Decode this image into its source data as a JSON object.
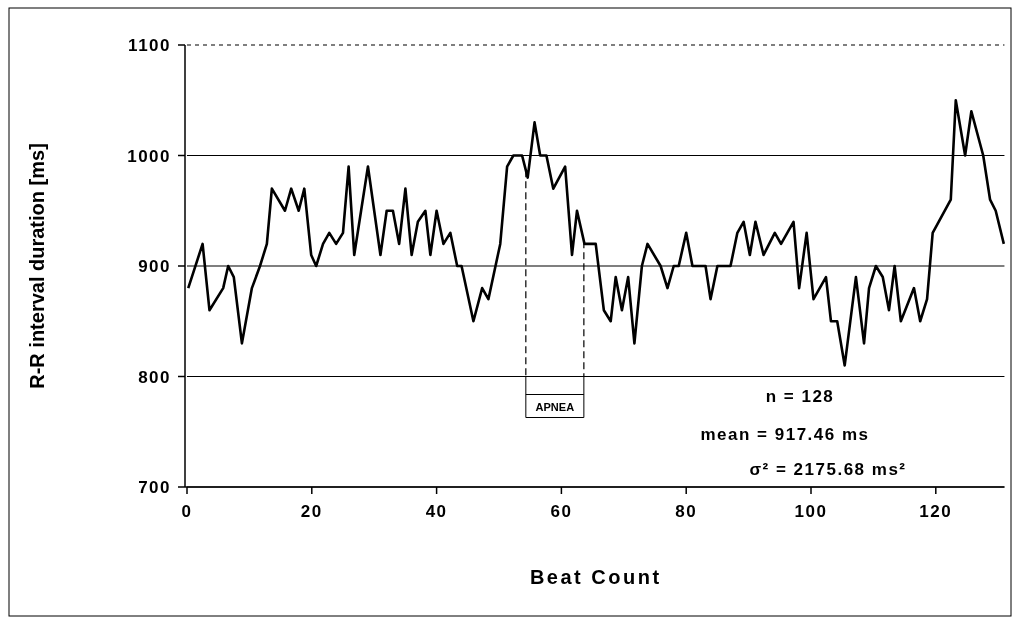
{
  "chart_data": {
    "type": "line",
    "xlabel": "Beat Count",
    "ylabel": "R-R interval duration [ms]",
    "series": [
      {
        "color": "#000000",
        "x": [
          0.2,
          2.5,
          3.6,
          5.8,
          6.6,
          7.5,
          8.8,
          10.4,
          11.7,
          12.8,
          13.6,
          15.7,
          16.7,
          17.9,
          18.8,
          19.9,
          20.7,
          21.8,
          22.8,
          23.9,
          25,
          25.9,
          26.8,
          27.9,
          29,
          31,
          32,
          33,
          34,
          35,
          36,
          37,
          38.2,
          39,
          40,
          41.1,
          42.2,
          43.3,
          44,
          45.9,
          47.3,
          48.3,
          50.2,
          51.3,
          52.3,
          53.7,
          54.6,
          55.7,
          56.6,
          57.6,
          58.7,
          60.6,
          61.7,
          62.5,
          63.7,
          65.5,
          66.8,
          67.9,
          68.7,
          69.7,
          70.7,
          71.7,
          72.9,
          73.8,
          75.9,
          77,
          78,
          78.8,
          80,
          81,
          83.1,
          83.9,
          85,
          87.1,
          88.2,
          89.2,
          90.2,
          91.1,
          92.4,
          94.2,
          95.2,
          97.2,
          98.1,
          99.3,
          100.4,
          102.4,
          103.2,
          104.2,
          105.4,
          107.2,
          108.5,
          109.3,
          110.4,
          111.5,
          112.5,
          113.4,
          114.4,
          116.5,
          117.5,
          118.6,
          119.5,
          122.4,
          123.2,
          124.7,
          125.7,
          127.6,
          128.7,
          129.6,
          130.9
        ],
        "values": [
          880,
          920,
          860,
          880,
          900,
          890,
          830,
          880,
          900,
          920,
          970,
          950,
          970,
          950,
          970,
          910,
          900,
          920,
          930,
          920,
          930,
          990,
          910,
          950,
          990,
          910,
          950,
          950,
          920,
          970,
          910,
          940,
          950,
          910,
          950,
          920,
          930,
          900,
          900,
          850,
          880,
          870,
          920,
          990,
          1000,
          1000,
          980,
          1030,
          1000,
          1000,
          970,
          990,
          910,
          950,
          920,
          920,
          860,
          850,
          890,
          860,
          890,
          830,
          900,
          920,
          900,
          880,
          900,
          900,
          930,
          900,
          900,
          870,
          900,
          900,
          930,
          940,
          910,
          940,
          910,
          930,
          920,
          940,
          880,
          930,
          870,
          890,
          850,
          850,
          810,
          890,
          830,
          880,
          900,
          890,
          860,
          900,
          850,
          880,
          850,
          870,
          930,
          960,
          1050,
          1000,
          1040,
          1000,
          960,
          950,
          920
        ]
      }
    ],
    "xlim": [
      0,
      131
    ],
    "xticks": [
      0,
      20,
      40,
      60,
      80,
      100,
      120
    ],
    "ylim": [
      700,
      1100
    ],
    "yticks": [
      700,
      800,
      900,
      1000,
      1100
    ],
    "grid": "y",
    "marker": "none",
    "line_style": "solid",
    "ref_lines": [
      {
        "axis": "x",
        "value": 54.3,
        "line_style": "dashed",
        "label": "APNEA"
      },
      {
        "axis": "x",
        "value": 63.6,
        "line_style": "dashed"
      }
    ],
    "annotations": [
      "n = 128",
      "mean = 917.46  ms",
      "σ² = 2175.68 ms²"
    ]
  }
}
